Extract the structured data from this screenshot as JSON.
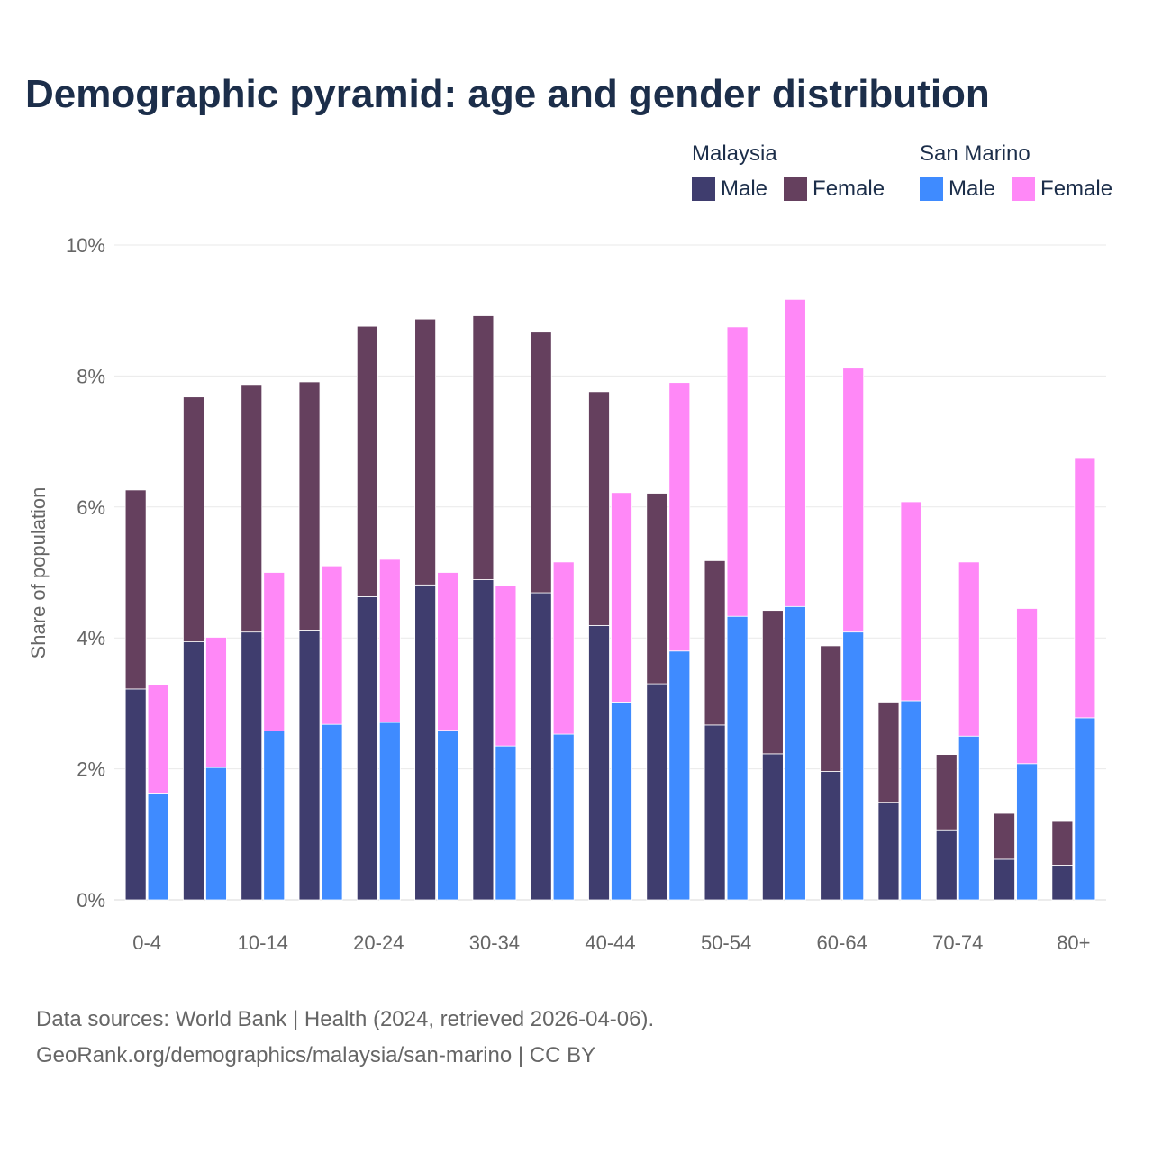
{
  "chart_data": {
    "type": "bar",
    "title": "Demographic pyramid: age and gender distribution",
    "ylabel": "Share of population",
    "xlabel": "",
    "ylim": [
      0,
      10
    ],
    "yticks": [
      0,
      2,
      4,
      6,
      8,
      10
    ],
    "ytick_suffix": "%",
    "categories": [
      "0-4",
      "5-9",
      "10-14",
      "15-19",
      "20-24",
      "25-29",
      "30-34",
      "35-39",
      "40-44",
      "45-49",
      "50-54",
      "55-59",
      "60-64",
      "65-69",
      "70-74",
      "75-79",
      "80+"
    ],
    "xtick_labels": [
      "0-4",
      "",
      "10-14",
      "",
      "20-24",
      "",
      "30-34",
      "",
      "40-44",
      "",
      "50-54",
      "",
      "60-64",
      "",
      "70-74",
      "",
      "80+"
    ],
    "stacking": "Male and Female stacked per country; two bars per age group",
    "groups": [
      {
        "name": "Malaysia",
        "series": [
          {
            "name": "Male",
            "color": "#3f3d6e",
            "values": [
              3.22,
              3.94,
              4.09,
              4.12,
              4.63,
              4.81,
              4.89,
              4.69,
              4.19,
              3.3,
              2.67,
              2.23,
              1.96,
              1.49,
              1.07,
              0.62,
              0.53
            ]
          },
          {
            "name": "Female",
            "color": "#65405e",
            "values": [
              3.04,
              3.74,
              3.78,
              3.79,
              4.13,
              4.06,
              4.03,
              3.98,
              3.57,
              2.91,
              2.51,
              2.19,
              1.92,
              1.53,
              1.15,
              0.7,
              0.68
            ]
          }
        ]
      },
      {
        "name": "San Marino",
        "series": [
          {
            "name": "Male",
            "color": "#3f8bff",
            "values": [
              1.63,
              2.02,
              2.58,
              2.68,
              2.71,
              2.59,
              2.35,
              2.53,
              3.02,
              3.8,
              4.33,
              4.48,
              4.09,
              3.04,
              2.5,
              2.08,
              2.78
            ]
          },
          {
            "name": "Female",
            "color": "#ff88f7",
            "values": [
              1.65,
              1.99,
              2.42,
              2.42,
              2.49,
              2.41,
              2.45,
              2.63,
              3.2,
              4.1,
              4.42,
              4.69,
              4.03,
              3.04,
              2.66,
              2.37,
              3.96
            ]
          }
        ]
      }
    ]
  },
  "legend": {
    "malaysia_title": "Malaysia",
    "malaysia_male": "Male",
    "malaysia_female": "Female",
    "sanmarino_title": "San Marino",
    "sanmarino_male": "Male",
    "sanmarino_female": "Female"
  },
  "footer": {
    "line1": "Data sources: World Bank | Health (2024, retrieved 2026-04-06).",
    "line2": "GeoRank.org/demographics/malaysia/san-marino | CC BY"
  }
}
